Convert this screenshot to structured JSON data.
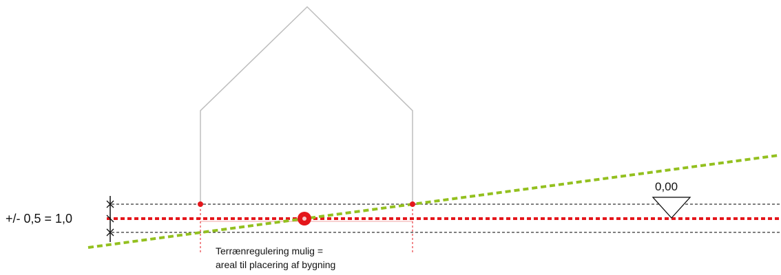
{
  "labels": {
    "tolerance": "+/- 0,5 = 1,0",
    "level": "0,00",
    "note_line_1": "Terrænregulering mulig =",
    "note_line_2": "areal til placering af bygning"
  },
  "colors": {
    "house_outline": "#bdbdbd",
    "reference_line": "#e4161b",
    "terrain_line": "#93c01f",
    "tolerance_lines": "#333333",
    "marker": "#e4161b"
  }
}
